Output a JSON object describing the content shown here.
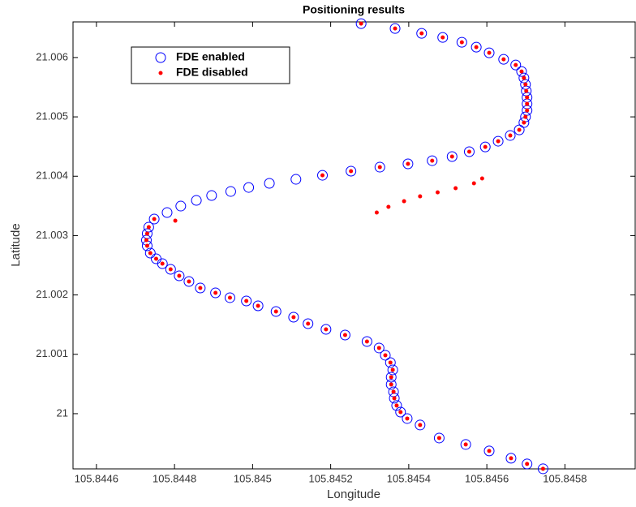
{
  "chart_data": {
    "type": "scatter",
    "title": "Positioning results",
    "x_label": "Longitude",
    "y_label": "Latitude",
    "xlim": [
      105.84454,
      105.84598
    ],
    "ylim": [
      20.99907,
      21.0066
    ],
    "xticks": [
      105.8446,
      105.8448,
      105.845,
      105.8452,
      105.8454,
      105.8456,
      105.8458
    ],
    "yticks": [
      21,
      21.001,
      21.002,
      21.003,
      21.004,
      21.005,
      21.006
    ],
    "legend": "upper left",
    "series": [
      {
        "name": "FDE enabled",
        "color": "#0000ff",
        "marker": "circle",
        "x": [
          105.845278,
          105.845365,
          105.845433,
          105.845487,
          105.845536,
          105.845573,
          105.845606,
          105.845643,
          105.845674,
          105.845689,
          105.845695,
          105.845699,
          105.845701,
          105.845703,
          105.845703,
          105.845703,
          105.845699,
          105.845695,
          105.845683,
          105.84566,
          105.845629,
          105.845596,
          105.845555,
          105.845511,
          105.84546,
          105.845398,
          105.845326,
          105.845252,
          105.845179,
          105.845111,
          105.845043,
          105.84499,
          105.844944,
          105.844895,
          105.844856,
          105.844816,
          105.844781,
          105.844748,
          105.844734,
          105.84473,
          105.844728,
          105.84473,
          105.844738,
          105.844753,
          105.844769,
          105.84479,
          105.844812,
          105.844837,
          105.844866,
          105.844905,
          105.844942,
          105.844984,
          105.845014,
          105.84506,
          105.845105,
          105.845142,
          105.845188,
          105.845237,
          105.845293,
          105.845324,
          105.84534,
          105.845353,
          105.845359,
          105.845355,
          105.845355,
          105.845361,
          105.845363,
          105.845369,
          105.845379,
          105.845396,
          105.845429,
          105.845478,
          105.845546,
          105.845606,
          105.845662,
          105.845703,
          105.845744
        ],
        "values": [
          21.006571,
          21.006489,
          21.006407,
          21.006339,
          21.006257,
          21.006175,
          21.006079,
          21.00597,
          21.005874,
          21.005765,
          21.005656,
          21.005546,
          21.005437,
          21.005328,
          21.005219,
          21.005109,
          21.005,
          21.004904,
          21.004781,
          21.004686,
          21.00459,
          21.004494,
          21.004413,
          21.004331,
          21.004262,
          21.004208,
          21.004153,
          21.004085,
          21.004016,
          21.003948,
          21.00388,
          21.003811,
          21.003743,
          21.003675,
          21.003593,
          21.003497,
          21.003388,
          21.003279,
          21.003142,
          21.003033,
          21.002923,
          21.002828,
          21.002705,
          21.002609,
          21.002527,
          21.002432,
          21.002322,
          21.002227,
          21.002117,
          21.002035,
          21.001954,
          21.001899,
          21.001817,
          21.001721,
          21.001626,
          21.001516,
          21.001421,
          21.001325,
          21.001216,
          21.001107,
          21.000984,
          21.000861,
          21.000738,
          21.000615,
          21.000492,
          21.000369,
          21.00026,
          21.000137,
          21.000027,
          20.999918,
          20.999809,
          20.99959,
          20.999481,
          20.999372,
          20.999249,
          20.999153,
          20.999071
        ]
      },
      {
        "name": "FDE disabled",
        "color": "#ff0000",
        "marker": "dot",
        "x": [
          105.845278,
          105.845365,
          105.845433,
          105.845487,
          105.845536,
          105.845573,
          105.845606,
          105.845643,
          105.845674,
          105.845689,
          105.845695,
          105.845699,
          105.845701,
          105.845703,
          105.845703,
          105.845703,
          105.845699,
          105.845695,
          105.845683,
          105.84566,
          105.845629,
          105.845596,
          105.845555,
          105.845511,
          105.84546,
          105.845398,
          105.845326,
          105.845252,
          105.845179,
          105.845588,
          105.845567,
          105.84552,
          105.845474,
          105.845429,
          105.845388,
          105.845348,
          105.845318,
          105.844802,
          105.844748,
          105.844734,
          105.84473,
          105.844728,
          105.84473,
          105.844738,
          105.844753,
          105.844769,
          105.84479,
          105.844812,
          105.844837,
          105.844866,
          105.844905,
          105.844942,
          105.844984,
          105.845014,
          105.84506,
          105.845105,
          105.845142,
          105.845188,
          105.845237,
          105.845293,
          105.845324,
          105.84534,
          105.845353,
          105.845359,
          105.845355,
          105.845355,
          105.845361,
          105.845363,
          105.845369,
          105.845379,
          105.845396,
          105.845429,
          105.845478,
          105.845546,
          105.845606,
          105.845662,
          105.845703,
          105.845744
        ],
        "values": [
          21.006571,
          21.006489,
          21.006407,
          21.006339,
          21.006257,
          21.006175,
          21.006079,
          21.00597,
          21.005874,
          21.005765,
          21.005656,
          21.005546,
          21.005437,
          21.005328,
          21.005219,
          21.005109,
          21.005,
          21.004904,
          21.004781,
          21.004686,
          21.00459,
          21.004494,
          21.004413,
          21.004331,
          21.004262,
          21.004208,
          21.004153,
          21.004085,
          21.004016,
          21.003962,
          21.00388,
          21.003798,
          21.003729,
          21.003661,
          21.003579,
          21.003484,
          21.003388,
          21.003251,
          21.003279,
          21.003142,
          21.003033,
          21.002923,
          21.002828,
          21.002705,
          21.002609,
          21.002527,
          21.002432,
          21.002322,
          21.002227,
          21.002117,
          21.002035,
          21.001954,
          21.001899,
          21.001817,
          21.001721,
          21.001626,
          21.001516,
          21.001421,
          21.001325,
          21.001216,
          21.001107,
          21.000984,
          21.000861,
          21.000738,
          21.000615,
          21.000492,
          21.000369,
          21.00026,
          21.000137,
          21.000027,
          20.999918,
          20.999809,
          20.99959,
          20.999481,
          20.999372,
          20.999249,
          20.999153,
          20.999071
        ]
      }
    ]
  }
}
